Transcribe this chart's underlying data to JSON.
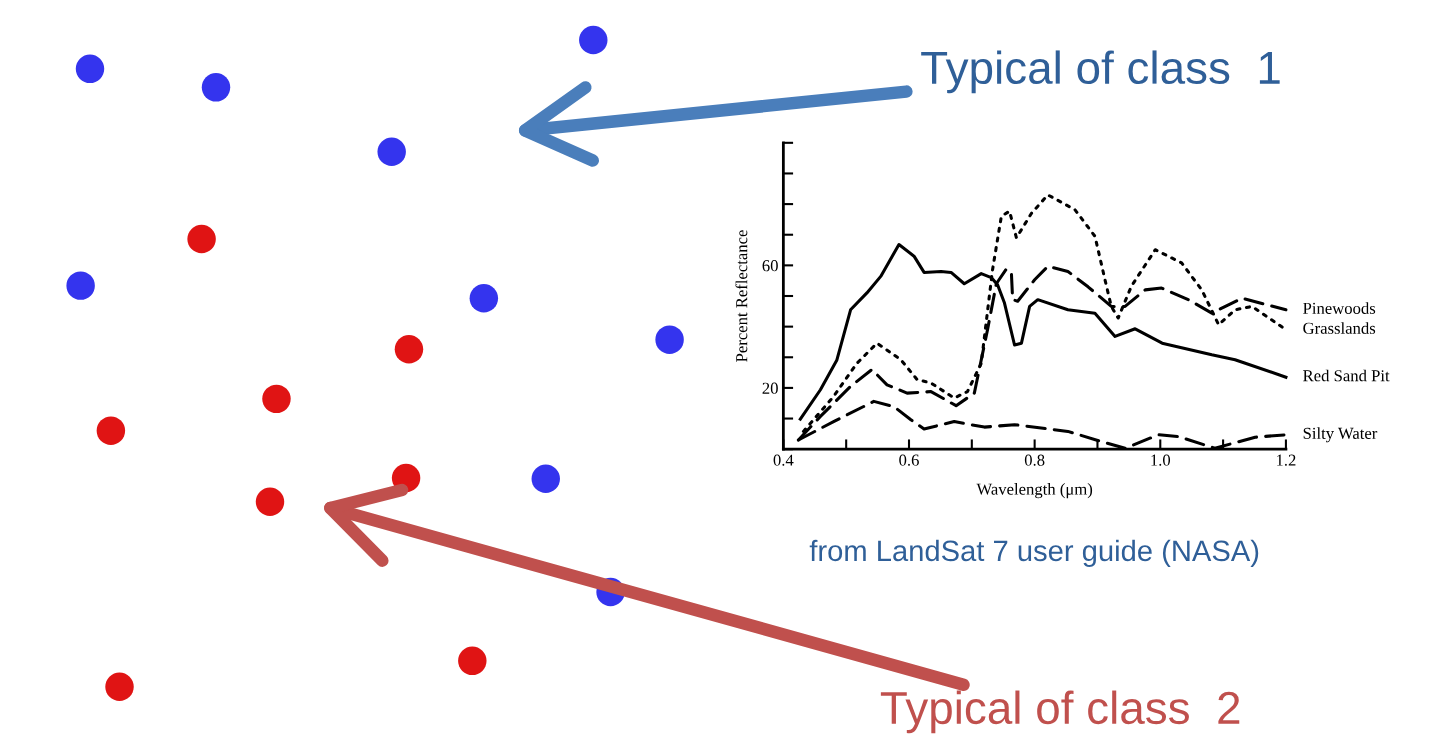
{
  "chart_data": [
    {
      "type": "other",
      "annotations": [
        "Typical of class  1",
        "Typical of class  2"
      ]
    },
    {
      "type": "line",
      "xlabel": "Wavelength (μm)",
      "ylabel": "Percent Reflectance",
      "annotations": [
        "from LandSat 7 user guide (NASA)"
      ],
      "xlim": [
        0.4,
        1.2
      ],
      "ylim": [
        0,
        100
      ],
      "xticks": [
        0.4,
        {
          "value": 0.5,
          "label": null
        },
        0.6,
        {
          "value": 0.7,
          "label": null
        },
        0.8,
        {
          "value": 0.9,
          "label": null
        },
        {
          "value": 1.0,
          "label": "1.0"
        },
        {
          "value": 1.1,
          "label": null
        },
        1.2
      ],
      "yticks": [
        {
          "value": 0,
          "label": null
        },
        {
          "value": 10,
          "label": null
        },
        20,
        {
          "value": 30,
          "label": null
        },
        {
          "value": 40,
          "label": null
        },
        {
          "value": 50,
          "label": null
        },
        60,
        {
          "value": 70,
          "label": null
        },
        {
          "value": 80,
          "label": null
        },
        {
          "value": 90,
          "label": null
        },
        {
          "value": 100,
          "label": null
        }
      ],
      "grid": false,
      "legend": false,
      "marker": "none",
      "series": [
        {
          "name": "Pinewoods",
          "color": "#000000",
          "line_style": "dashed",
          "x": [
            0.424,
            0.459,
            0.507,
            0.541,
            0.565,
            0.597,
            0.635,
            0.675,
            0.704,
            0.725,
            0.739,
            0.755,
            0.763,
            0.765,
            0.773,
            0.8,
            0.821,
            0.853,
            0.885,
            0.922,
            0.944,
            0.976,
            1.002,
            1.045,
            1.082,
            1.13,
            1.2
          ],
          "values": [
            3,
            10.7,
            20.5,
            26,
            21,
            18.3,
            18.8,
            14.2,
            18.3,
            39,
            54,
            58.8,
            57.5,
            48.8,
            48.3,
            55.3,
            59.7,
            58,
            53,
            46.6,
            46.6,
            52,
            52.6,
            48.8,
            44.4,
            49.3,
            45.5
          ]
        },
        {
          "name": "Grasslands",
          "color": "#000000",
          "line_style": "dotted",
          "x": [
            0.432,
            0.48,
            0.517,
            0.549,
            0.587,
            0.613,
            0.635,
            0.672,
            0.693,
            0.715,
            0.733,
            0.747,
            0.76,
            0.771,
            0.795,
            0.821,
            0.864,
            0.896,
            0.912,
            0.922,
            0.933,
            0.954,
            0.992,
            1.034,
            1.066,
            1.093,
            1.119,
            1.146,
            1.2
          ],
          "values": [
            5.8,
            17.2,
            28,
            34.6,
            29.2,
            22.7,
            21.6,
            16.7,
            18.8,
            28,
            58.6,
            76,
            77.7,
            69,
            77,
            83,
            78.2,
            69.5,
            55.3,
            46.6,
            42.8,
            53.2,
            65.1,
            60.8,
            52,
            40.6,
            45.5,
            46.6,
            39
          ]
        },
        {
          "name": "Red Sand Pit",
          "color": "#000000",
          "line_style": "solid",
          "x": [
            0.427,
            0.459,
            0.485,
            0.507,
            0.533,
            0.555,
            0.584,
            0.608,
            0.624,
            0.651,
            0.667,
            0.688,
            0.715,
            0.731,
            0.741,
            0.752,
            0.768,
            0.779,
            0.792,
            0.805,
            0.853,
            0.896,
            0.928,
            0.96,
            1.003,
            1.082,
            1.119,
            1.2
          ],
          "values": [
            9.8,
            19.4,
            29,
            45.5,
            51,
            56.4,
            66.8,
            63,
            57.7,
            58,
            57.7,
            54,
            57.3,
            56,
            53.7,
            47.7,
            34,
            34.6,
            46.6,
            48.8,
            45.5,
            44.4,
            36.8,
            39.3,
            34.6,
            30.8,
            29.2,
            23.5
          ]
        },
        {
          "name": "Silty Water",
          "color": "#000000",
          "line_style": "dashed",
          "x": [
            0.424,
            0.48,
            0.544,
            0.576,
            0.603,
            0.624,
            0.672,
            0.72,
            0.768,
            0.853,
            0.906,
            0.944,
            0.997,
            1.029,
            1.087,
            1.151,
            1.2
          ],
          "values": [
            3,
            9,
            15.6,
            13.9,
            9.6,
            6.6,
            9,
            7.2,
            8,
            5.8,
            2.5,
            0.3,
            4.7,
            4.1,
            0.3,
            3.9,
            4.7
          ]
        }
      ]
    }
  ]
}
